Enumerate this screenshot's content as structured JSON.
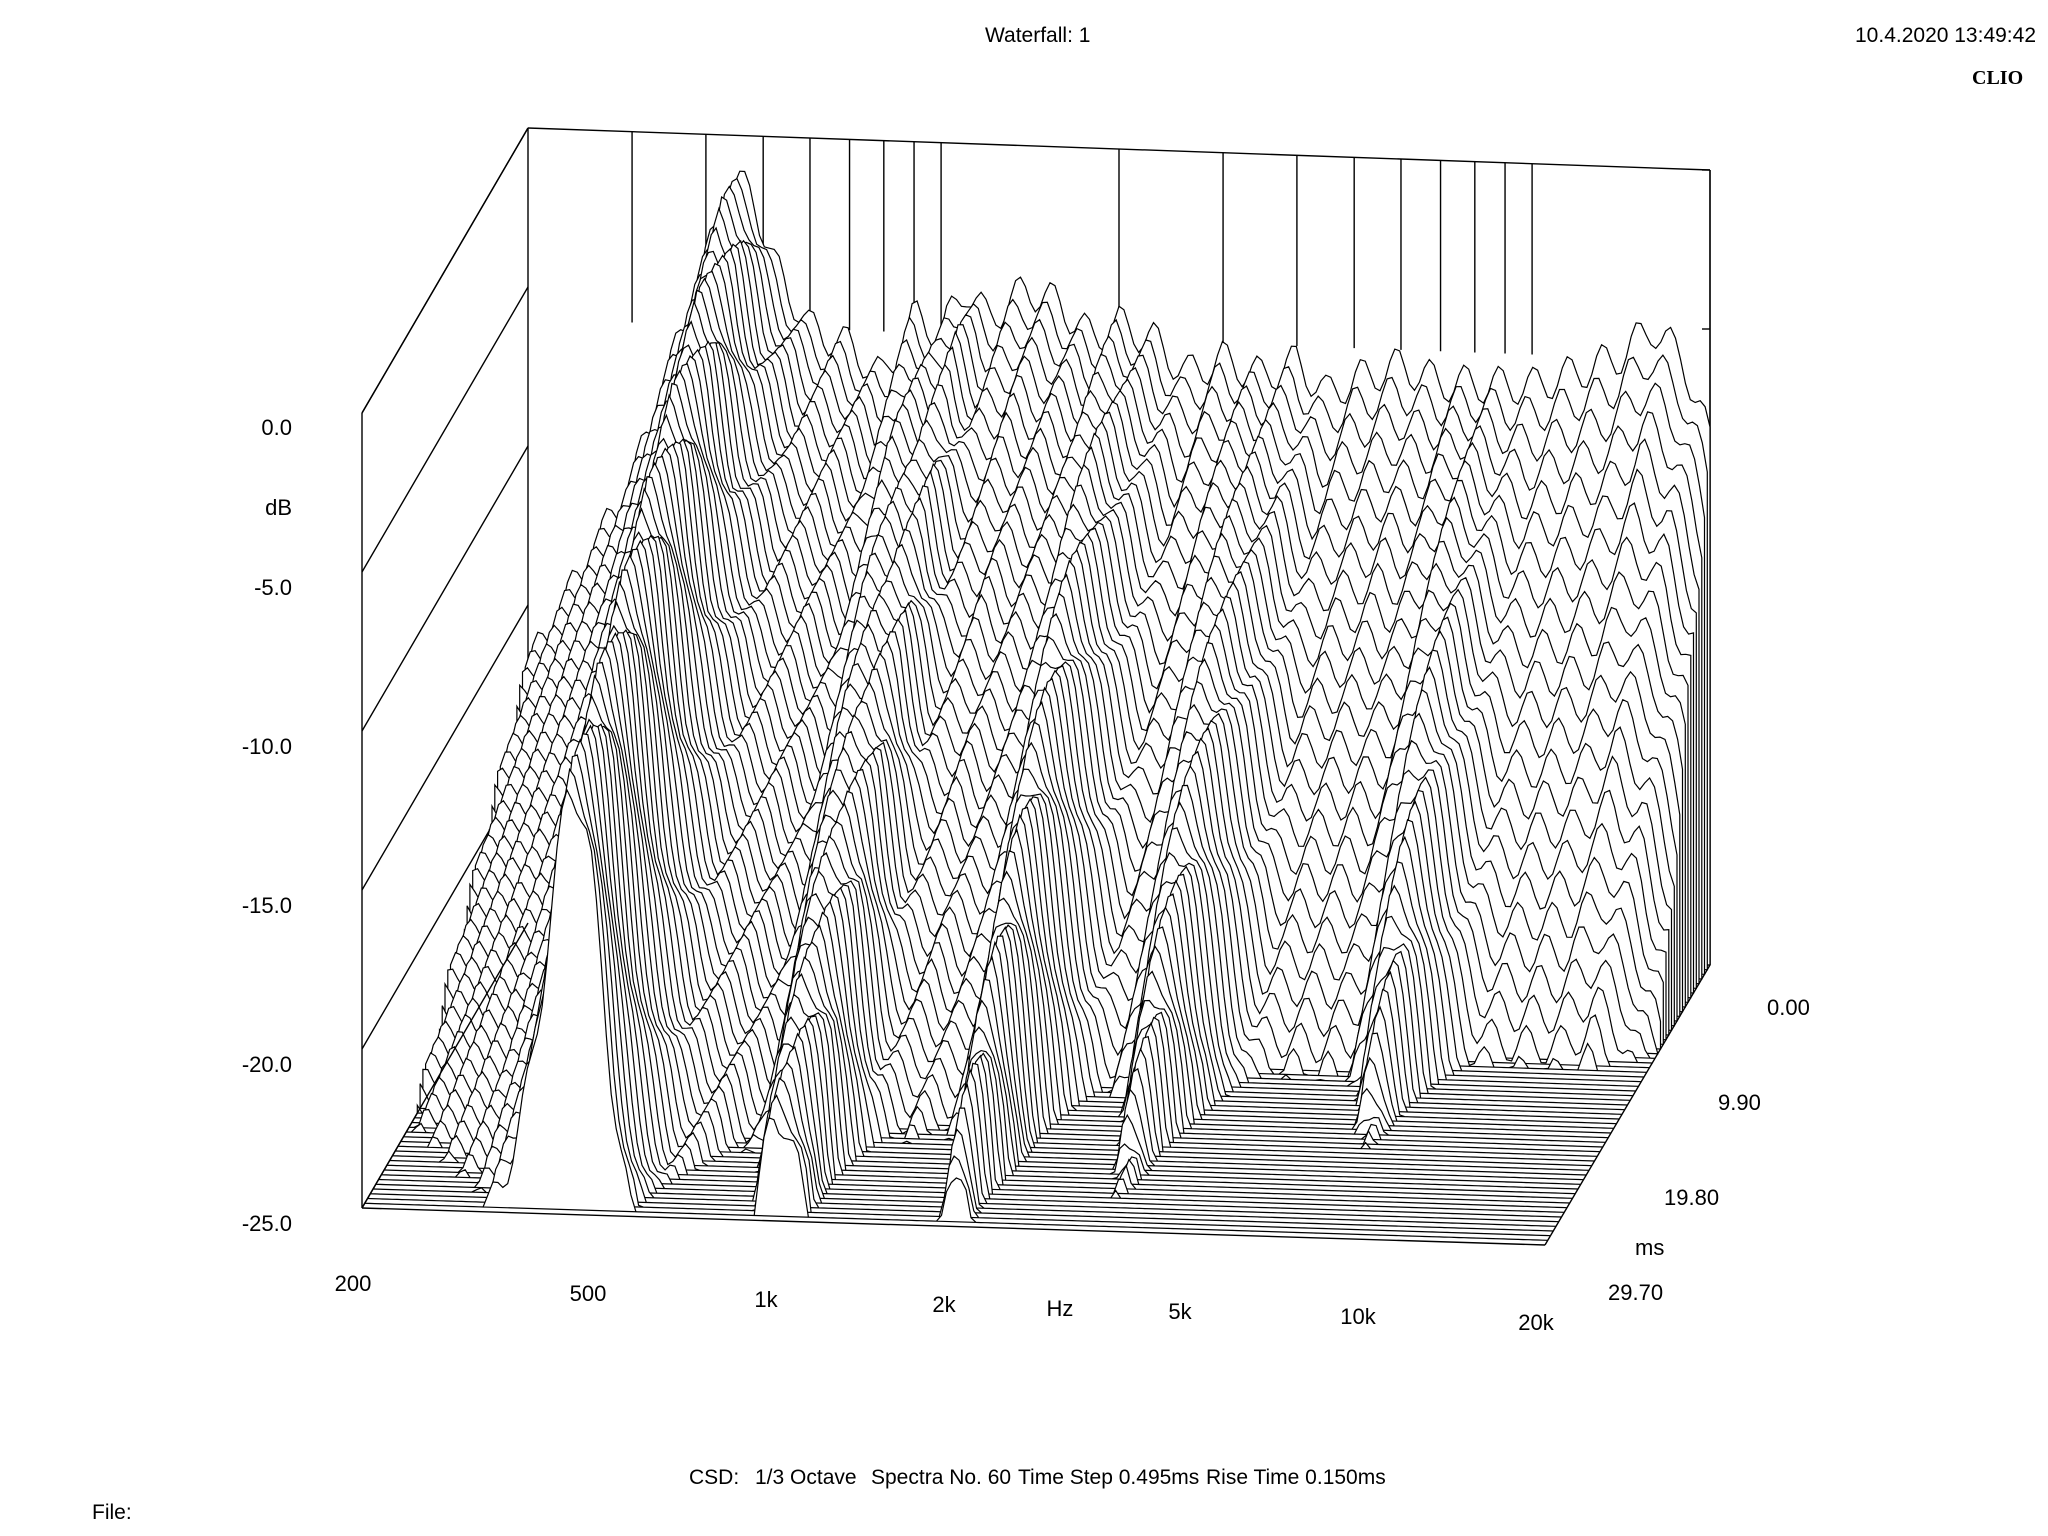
{
  "header": {
    "title": "Waterfall: 1",
    "timestamp": "10.4.2020 13:49:42",
    "brand": "CLIO"
  },
  "footer": {
    "csd_label": "CSD:",
    "smoothing": "1/3 Octave",
    "spectra": "Spectra No. 60",
    "time_step": "Time Step 0.495ms",
    "rise_time": "Rise Time 0.150ms",
    "file_label": "File:"
  },
  "chart_data": {
    "type": "waterfall",
    "title": "Waterfall: 1",
    "y_axis": {
      "label": "dB",
      "range": [
        -25,
        0
      ],
      "ticks": [
        "0.0",
        "-5.0",
        "-10.0",
        "-15.0",
        "-20.0",
        "-25.0"
      ],
      "tick_values": [
        0,
        -5,
        -10,
        -15,
        -20,
        -25
      ]
    },
    "x_axis": {
      "label": "Hz",
      "scale": "log",
      "range": [
        200,
        20000
      ],
      "ticks": [
        "200",
        "500",
        "1k",
        "2k",
        "5k",
        "10k",
        "20k"
      ],
      "tick_values": [
        200,
        500,
        1000,
        2000,
        5000,
        10000,
        20000
      ]
    },
    "z_axis": {
      "label": "ms",
      "range": [
        0,
        29.7
      ],
      "ticks": [
        "0.00",
        "9.90",
        "19.80",
        "29.70"
      ],
      "tick_values": [
        0,
        9.9,
        19.8,
        29.7
      ]
    },
    "spectra_count": 60,
    "time_step_ms": 0.495,
    "rise_time_ms": 0.15,
    "initial_spectrum": {
      "freq": [
        200,
        300,
        400,
        440,
        480,
        520,
        600,
        700,
        800,
        900,
        1000,
        1100,
        1200,
        1400,
        1600,
        1800,
        2000,
        2300,
        2600,
        3000,
        3500,
        4000,
        4500,
        5000,
        6000,
        7000,
        8000,
        9000,
        10000,
        12000,
        14000,
        16000,
        18000,
        20000
      ],
      "db": [
        -17,
        -11,
        -4,
        -1.5,
        -1.8,
        -4,
        -6,
        -6.5,
        -7.5,
        -5.5,
        -6,
        -4.5,
        -5.5,
        -4.5,
        -5,
        -6,
        -5.5,
        -6,
        -7,
        -6.5,
        -7,
        -6.5,
        -7.5,
        -7,
        -6.5,
        -7,
        -7,
        -7,
        -7,
        -6.5,
        -6,
        -5,
        -6,
        -8.5
      ]
    },
    "decay_peaks": [
      {
        "freq": 450,
        "db_at_start": -4,
        "decay_rate_db_per_ms": 0.35
      },
      {
        "freq": 1000,
        "db_at_start": -6,
        "decay_rate_db_per_ms": 0.55
      },
      {
        "freq": 2000,
        "db_at_start": -6.5,
        "decay_rate_db_per_ms": 0.6
      },
      {
        "freq": 3500,
        "db_at_start": -7,
        "decay_rate_db_per_ms": 0.7
      },
      {
        "freq": 8000,
        "db_at_start": -7,
        "decay_rate_db_per_ms": 0.9
      }
    ]
  }
}
